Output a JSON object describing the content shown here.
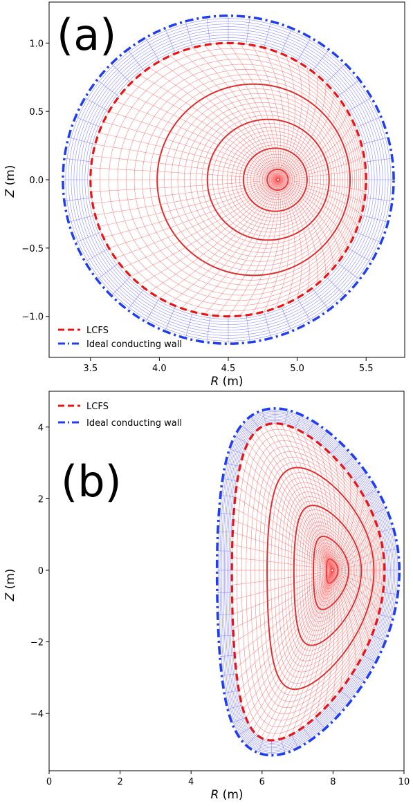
{
  "chart_data": [
    {
      "panel_label": "(a)",
      "type": "line",
      "xlabel": "R (m)",
      "ylabel": "Z (m)",
      "xlim": [
        3.2,
        5.78
      ],
      "ylim": [
        -1.3,
        1.3
      ],
      "xticks": [
        3.5,
        4.0,
        4.5,
        5.0,
        5.5
      ],
      "xtick_labels": [
        "3.5",
        "4.0",
        "4.5",
        "5.0",
        "5.5"
      ],
      "yticks": [
        -1.0,
        -0.5,
        0.0,
        0.5,
        1.0
      ],
      "ytick_labels": [
        "−1.0",
        "−0.5",
        "0.0",
        "0.5",
        "1.0"
      ],
      "legend": {
        "placement": "lower-left",
        "entries": [
          "LCFS",
          "Ideal conducting wall"
        ]
      },
      "colors": {
        "plasma_mesh": "#ff5a5a",
        "vacuum_mesh": "#8c8cff",
        "lcfs": "#e81414",
        "wall": "#1f3ef0"
      },
      "series": [
        {
          "name": "LCFS",
          "style": "dashed",
          "shape": "circle",
          "center": [
            4.5,
            0.0
          ],
          "radius": 1.0
        },
        {
          "name": "Ideal conducting wall",
          "style": "dashdot",
          "shape": "circle",
          "center": [
            4.5,
            0.0
          ],
          "radius": 1.2
        }
      ],
      "magnetic_axis": [
        4.86,
        0.0
      ]
    },
    {
      "panel_label": "(b)",
      "type": "line",
      "xlabel": "R (m)",
      "ylabel": "Z (m)",
      "xlim": [
        0,
        10
      ],
      "ylim": [
        -5.6,
        5.0
      ],
      "xticks": [
        0,
        2,
        4,
        6,
        8,
        10
      ],
      "xtick_labels": [
        "0",
        "2",
        "4",
        "6",
        "8",
        "10"
      ],
      "yticks": [
        -4,
        -2,
        0,
        2,
        4
      ],
      "ytick_labels": [
        "−4",
        "−2",
        "0",
        "2",
        "4"
      ],
      "legend": {
        "placement": "upper-left",
        "entries": [
          "LCFS",
          "Ideal conducting wall"
        ]
      },
      "colors": {
        "plasma_mesh": "#ff5a5a",
        "vacuum_mesh": "#8c8cff",
        "lcfs": "#e81414",
        "wall": "#1f3ef0"
      },
      "series": [
        {
          "name": "LCFS",
          "style": "dashed",
          "shape": "D-shaped",
          "R0": 7.3,
          "a": 2.15,
          "kappa_upper": 4.1,
          "kappa_lower": 4.75,
          "delta_upper": 0.45,
          "delta_lower": 0.5,
          "points_R": [
            5.15,
            5.3,
            5.8,
            6.3,
            7.6,
            8.8,
            9.45,
            9.3,
            8.5,
            7.4,
            6.3,
            5.6,
            5.15
          ],
          "points_Z": [
            0.0,
            2.5,
            3.8,
            4.1,
            3.3,
            2.0,
            0.0,
            -1.8,
            -3.2,
            -4.3,
            -4.75,
            -3.5,
            0.0
          ]
        },
        {
          "name": "Ideal conducting wall",
          "style": "dashdot",
          "shape": "D-shaped",
          "points_R": [
            4.9,
            5.05,
            5.6,
            6.35,
            7.8,
            9.1,
            9.85,
            9.7,
            8.8,
            7.5,
            6.3,
            5.4,
            4.9
          ],
          "points_Z": [
            0.0,
            2.8,
            4.2,
            4.5,
            3.6,
            2.2,
            0.0,
            -2.0,
            -3.6,
            -4.8,
            -5.2,
            -3.8,
            0.0
          ]
        }
      ],
      "magnetic_axis": [
        7.98,
        0.0
      ]
    }
  ]
}
